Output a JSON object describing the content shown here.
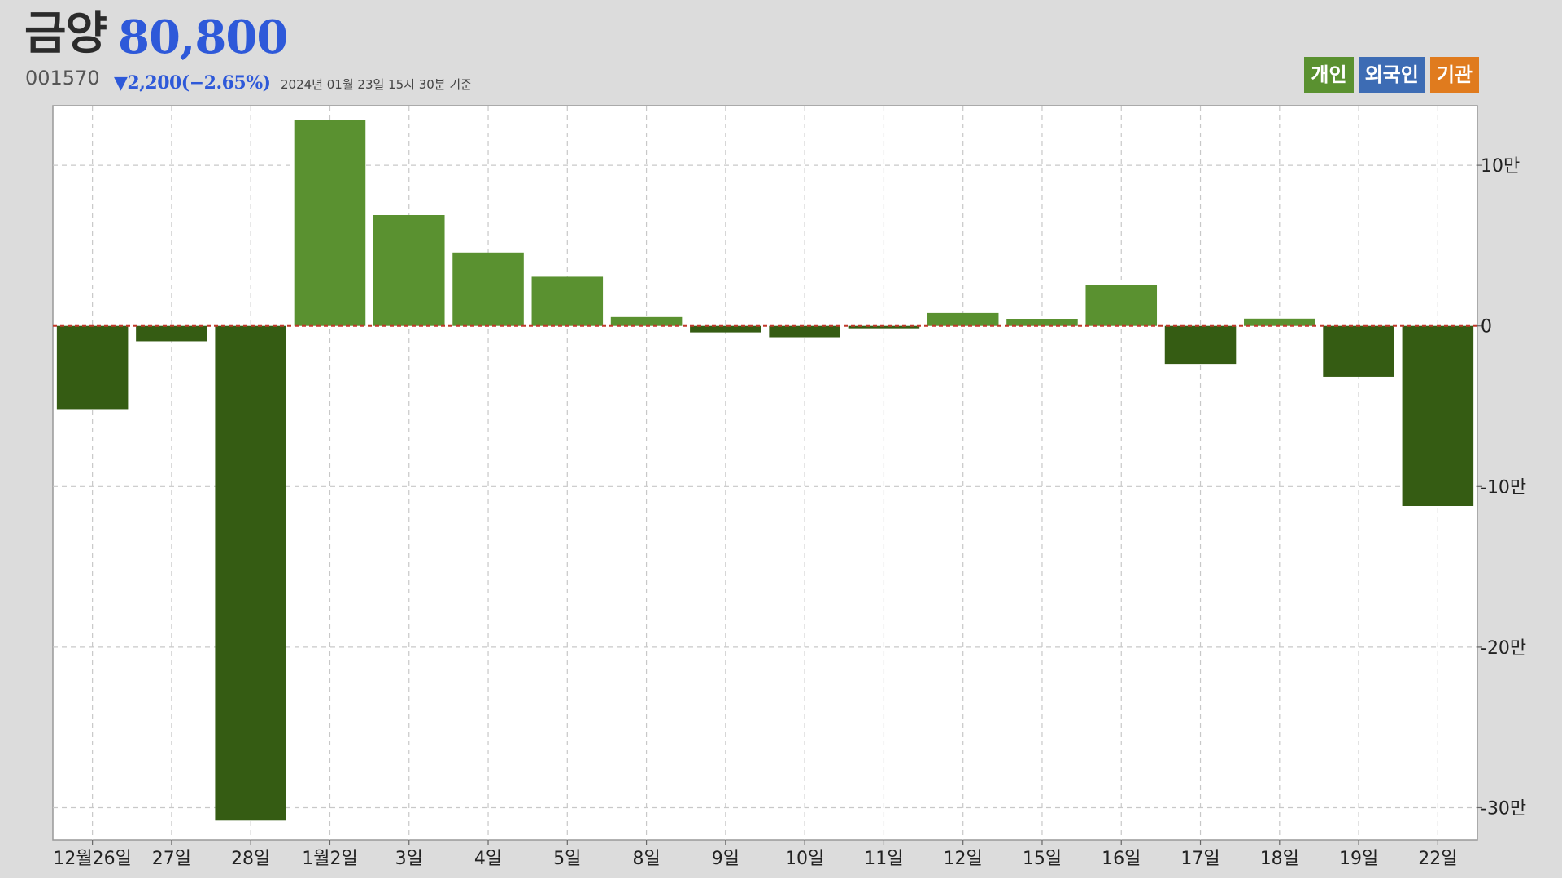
{
  "header": {
    "name": "금양",
    "price": "80,800",
    "code": "001570",
    "change": "▼2,200(−2.65%)",
    "asof": "2024년 01월 23일 15시 30분 기준"
  },
  "legend": [
    {
      "label": "개인",
      "color": "#5a9130"
    },
    {
      "label": "외국인",
      "color": "#3d6cb4"
    },
    {
      "label": "기관",
      "color": "#e07b1e"
    }
  ],
  "chart_data": {
    "type": "bar",
    "categories": [
      "12월26일",
      "27일",
      "28일",
      "1월2일",
      "3일",
      "4일",
      "5일",
      "8일",
      "9일",
      "10일",
      "11일",
      "12일",
      "15일",
      "16일",
      "17일",
      "18일",
      "19일",
      "22일"
    ],
    "series": [
      {
        "name": "개인",
        "values": [
          -52000,
          -10000,
          -308000,
          128000,
          69000,
          45500,
          30500,
          5500,
          -4000,
          -7500,
          -2000,
          8000,
          4000,
          25500,
          -24000,
          4500,
          -32000,
          -112000
        ]
      }
    ],
    "positive_color": "#5a9130",
    "negative_color": "#355c13",
    "zero_line_color": "#c0392b",
    "ylim": [
      -320000,
      137000
    ],
    "yticks": [
      100000,
      0,
      -100000,
      -200000,
      -300000
    ],
    "ytick_labels": [
      "10만",
      "0",
      "-10만",
      "-20만",
      "-30만"
    ],
    "grid": true,
    "legend_position": "top-right",
    "title": "",
    "xlabel": "",
    "ylabel": ""
  }
}
